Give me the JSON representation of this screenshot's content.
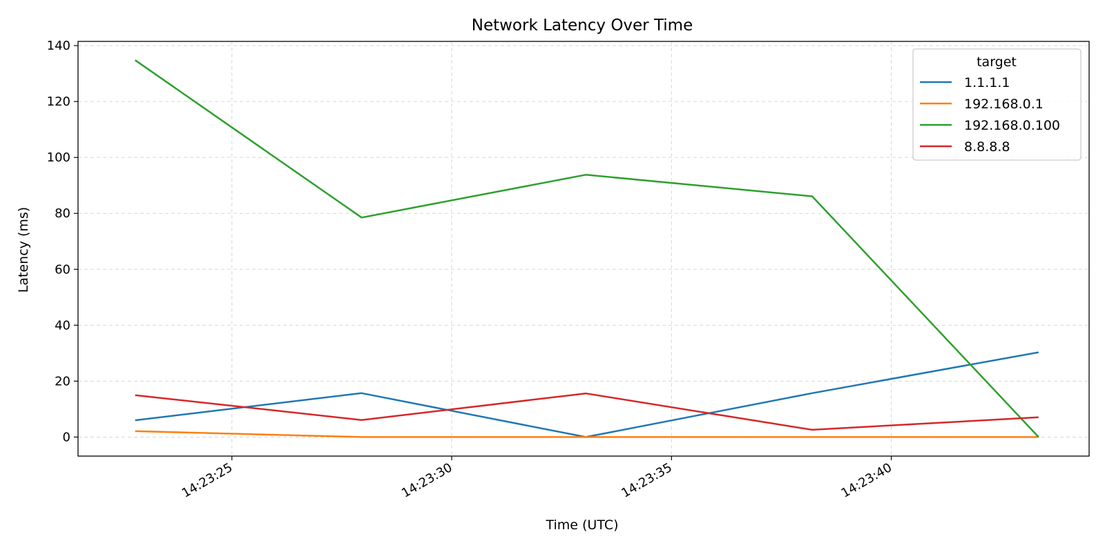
{
  "chart_data": {
    "type": "line",
    "title": "Network Latency Over Time",
    "xlabel": "Time (UTC)",
    "ylabel": "Latency (ms)",
    "x": [
      "14:23:22.8",
      "14:23:28.0",
      "14:23:33.1",
      "14:23:38.2",
      "14:23:43.3"
    ],
    "x_ticks": [
      {
        "value": 25,
        "label": "14:23:25"
      },
      {
        "value": 30,
        "label": "14:23:30"
      },
      {
        "value": 35,
        "label": "14:23:35"
      },
      {
        "value": 40,
        "label": "14:23:40"
      }
    ],
    "x_seconds": [
      22.8,
      27.95,
      33.05,
      38.2,
      43.35
    ],
    "xlim": [
      21.5,
      44.5
    ],
    "ylim": [
      -6.8,
      141.5
    ],
    "y_ticks": [
      0,
      20,
      40,
      60,
      80,
      100,
      120,
      140
    ],
    "grid": true,
    "legend": {
      "title": "target",
      "placement": "top-right"
    },
    "series": [
      {
        "name": "1.1.1.1",
        "color": "#1f77b4",
        "values": [
          6.0,
          15.7,
          0.0,
          15.7,
          30.3
        ]
      },
      {
        "name": "192.168.0.1",
        "color": "#ff7f0e",
        "values": [
          2.1,
          0.0,
          0.0,
          0.0,
          0.0
        ]
      },
      {
        "name": "192.168.0.100",
        "color": "#2ca02c",
        "values": [
          134.8,
          78.5,
          93.8,
          86.1,
          0.0
        ]
      },
      {
        "name": "8.8.8.8",
        "color": "#d62728",
        "values": [
          15.0,
          6.1,
          15.6,
          2.6,
          7.1
        ]
      }
    ]
  }
}
